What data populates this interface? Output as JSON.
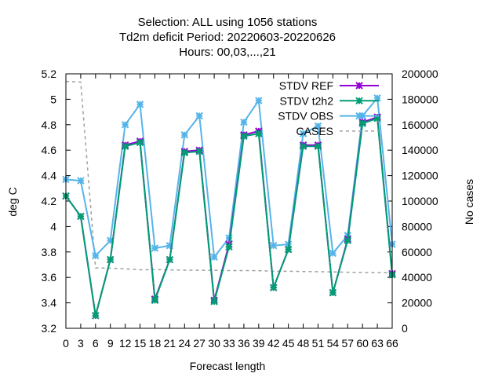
{
  "chart_data": {
    "type": "line",
    "title_lines": [
      "Selection: ALL using  1056 stations",
      "Td2m deficit   Period: 20220603-20220626",
      "Hours:  00,03,...,21"
    ],
    "xlabel": "Forecast length",
    "ylabel": "deg C",
    "y2label": "No cases",
    "x": [
      0,
      3,
      6,
      9,
      12,
      15,
      18,
      21,
      24,
      27,
      30,
      33,
      36,
      39,
      42,
      45,
      48,
      51,
      54,
      57,
      60,
      63,
      66
    ],
    "xticks": [
      "0",
      "3",
      "6",
      "9",
      "12",
      "15",
      "18",
      "21",
      "24",
      "27",
      "30",
      "33",
      "36",
      "39",
      "42",
      "45",
      "48",
      "51",
      "54",
      "57",
      "60",
      "63",
      "66"
    ],
    "xlim": [
      0,
      66
    ],
    "ylim": [
      3.2,
      5.2
    ],
    "yticks": [
      "3.2",
      "3.4",
      "3.6",
      "3.8",
      "4",
      "4.2",
      "4.4",
      "4.6",
      "4.8",
      "5",
      "5.2"
    ],
    "y2lim": [
      0,
      200000
    ],
    "y2ticks": [
      "0",
      "20000",
      "40000",
      "60000",
      "80000",
      "100000",
      "120000",
      "140000",
      "160000",
      "180000",
      "200000"
    ],
    "legend_position": "top-right",
    "series": [
      {
        "name": "STDV REF",
        "axis": "y",
        "color": "#9400d3",
        "marker": "x",
        "values": [
          4.24,
          4.08,
          3.3,
          3.74,
          4.64,
          4.67,
          3.43,
          3.74,
          4.59,
          4.6,
          3.42,
          3.86,
          4.72,
          4.75,
          3.52,
          3.82,
          4.64,
          4.64,
          3.48,
          3.9,
          4.82,
          4.86,
          3.63
        ]
      },
      {
        "name": "STDV t2h2",
        "axis": "y",
        "color": "#009e73",
        "marker": "x",
        "values": [
          4.24,
          4.08,
          3.3,
          3.74,
          4.63,
          4.66,
          3.42,
          3.74,
          4.58,
          4.59,
          3.41,
          3.84,
          4.71,
          4.73,
          3.52,
          3.82,
          4.63,
          4.63,
          3.48,
          3.89,
          4.81,
          4.85,
          3.62
        ]
      },
      {
        "name": "STDV OBS",
        "axis": "y",
        "color": "#56b4e9",
        "marker": "x",
        "values": [
          4.37,
          4.36,
          3.77,
          3.89,
          4.8,
          4.96,
          3.83,
          3.85,
          4.72,
          4.87,
          3.76,
          3.91,
          4.82,
          4.99,
          3.85,
          3.86,
          4.73,
          4.79,
          3.79,
          3.93,
          4.87,
          5.01,
          3.86
        ]
      },
      {
        "name": "CASES",
        "axis": "y2",
        "color": "#a0a0a0",
        "marker": "none",
        "dashed": true,
        "values": [
          194000,
          193500,
          47500,
          47200,
          46800,
          46000,
          46100,
          45900,
          45700,
          45600,
          45600,
          45400,
          45400,
          45300,
          44900,
          44800,
          44600,
          44500,
          44300,
          44100,
          43900,
          43800,
          43600
        ]
      }
    ]
  }
}
